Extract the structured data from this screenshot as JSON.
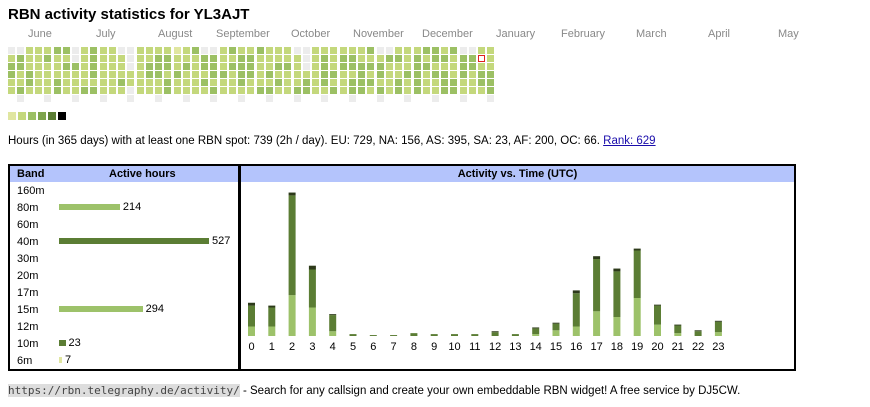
{
  "title": "RBN activity statistics for YL3AJT",
  "months": [
    "June",
    "July",
    "August",
    "September",
    "October",
    "November",
    "December",
    "January",
    "February",
    "March",
    "April",
    "May"
  ],
  "colors": {
    "levels": [
      "#e0e6a0",
      "#c4d87c",
      "#9cc064",
      "#7ea44c",
      "#5b7d34",
      "#000000"
    ],
    "empty": "#ececec",
    "today_border": "#e02020",
    "band_light": "#9dc26a",
    "band_dark": "#5b7d34",
    "band_pale": "#e0e6a0",
    "header_bg": "#b4c4fc"
  },
  "summary": {
    "text": "Hours (in 365 days) with at least one RBN spot: 739 (2h / day). EU: 729, NA: 156, AS: 395, SA: 23, AF: 200, OC: 66.",
    "rank_label": "Rank: 629"
  },
  "band_table": {
    "header_band": "Band",
    "header_hours": "Active hours",
    "rows": [
      {
        "band": "160m",
        "hours": null,
        "level": ""
      },
      {
        "band": "80m",
        "hours": 214,
        "level": "light"
      },
      {
        "band": "60m",
        "hours": null,
        "level": ""
      },
      {
        "band": "40m",
        "hours": 527,
        "level": "dark"
      },
      {
        "band": "30m",
        "hours": null,
        "level": ""
      },
      {
        "band": "20m",
        "hours": null,
        "level": ""
      },
      {
        "band": "17m",
        "hours": null,
        "level": ""
      },
      {
        "band": "15m",
        "hours": 294,
        "level": "light"
      },
      {
        "band": "12m",
        "hours": null,
        "level": ""
      },
      {
        "band": "10m",
        "hours": 23,
        "level": "dark"
      },
      {
        "band": "6m",
        "hours": 7,
        "level": "pale"
      }
    ]
  },
  "activity": {
    "title": "Activity vs. Time (UTC)",
    "hours": [
      "0",
      "1",
      "2",
      "3",
      "4",
      "5",
      "6",
      "7",
      "8",
      "9",
      "10",
      "11",
      "12",
      "13",
      "14",
      "15",
      "16",
      "17",
      "18",
      "19",
      "20",
      "21",
      "22",
      "23"
    ]
  },
  "chart_data": {
    "type": "bar",
    "title": "Activity vs. Time (UTC)",
    "categories": [
      "0",
      "1",
      "2",
      "3",
      "4",
      "5",
      "6",
      "7",
      "8",
      "9",
      "10",
      "11",
      "12",
      "13",
      "14",
      "15",
      "16",
      "17",
      "18",
      "19",
      "20",
      "21",
      "22",
      "23"
    ],
    "series": [
      {
        "values": [
          10,
          10,
          43,
          30,
          5,
          0,
          0,
          0,
          0,
          0,
          0,
          0,
          0,
          0,
          2,
          6,
          10,
          26,
          20,
          40,
          12,
          3,
          0,
          4
        ]
      },
      {
        "values": [
          22,
          20,
          105,
          40,
          17,
          2,
          1,
          1,
          3,
          2,
          2,
          2,
          4,
          2,
          6,
          7,
          35,
          55,
          48,
          50,
          20,
          8,
          5,
          11
        ]
      },
      {
        "values": [
          3,
          2,
          3,
          4,
          1,
          0,
          0,
          0,
          0,
          0,
          0,
          0,
          1,
          0,
          1,
          1,
          3,
          3,
          3,
          2,
          1,
          1,
          1,
          1
        ]
      }
    ]
  },
  "heatmap": {
    "rows": 7,
    "weeks": 53,
    "values": [
      [
        0,
        0,
        2,
        2,
        2,
        3,
        3,
        0,
        2,
        3,
        2,
        2,
        0,
        0,
        2,
        2,
        2,
        2,
        1,
        2,
        3,
        0,
        0,
        2,
        3,
        2,
        2,
        3,
        2,
        2,
        2,
        0,
        0,
        2,
        2,
        2,
        2,
        2,
        2,
        3,
        0,
        0,
        2,
        2,
        2,
        3,
        3,
        2,
        3,
        0,
        0,
        2,
        2
      ],
      [
        2,
        3,
        2,
        2,
        3,
        2,
        2,
        0,
        2,
        3,
        2,
        2,
        2,
        0,
        2,
        2,
        3,
        3,
        2,
        2,
        2,
        3,
        3,
        2,
        2,
        3,
        3,
        2,
        2,
        2,
        2,
        2,
        0,
        2,
        3,
        2,
        3,
        3,
        2,
        2,
        2,
        3,
        3,
        2,
        3,
        2,
        3,
        3,
        2,
        3,
        3,
        3,
        2
      ],
      [
        3,
        3,
        2,
        2,
        2,
        2,
        3,
        3,
        2,
        3,
        2,
        2,
        2,
        0,
        2,
        3,
        3,
        3,
        2,
        3,
        2,
        3,
        3,
        2,
        3,
        3,
        3,
        2,
        2,
        3,
        3,
        2,
        0,
        2,
        3,
        2,
        3,
        3,
        3,
        3,
        3,
        2,
        2,
        2,
        3,
        3,
        2,
        2,
        2,
        3,
        3,
        2,
        2
      ],
      [
        3,
        2,
        3,
        2,
        2,
        2,
        2,
        2,
        2,
        3,
        2,
        2,
        2,
        2,
        2,
        3,
        3,
        2,
        3,
        2,
        2,
        2,
        3,
        3,
        2,
        3,
        3,
        2,
        3,
        2,
        2,
        2,
        2,
        2,
        3,
        3,
        2,
        2,
        3,
        2,
        3,
        2,
        2,
        3,
        3,
        2,
        3,
        3,
        2,
        3,
        2,
        3,
        3
      ],
      [
        2,
        2,
        3,
        2,
        2,
        3,
        2,
        2,
        2,
        2,
        2,
        2,
        3,
        2,
        2,
        2,
        2,
        3,
        2,
        2,
        2,
        3,
        2,
        2,
        2,
        3,
        2,
        2,
        2,
        3,
        2,
        2,
        3,
        2,
        3,
        2,
        2,
        3,
        3,
        3,
        2,
        2,
        3,
        2,
        3,
        2,
        2,
        3,
        3,
        2,
        2,
        3,
        3
      ],
      [
        2,
        3,
        2,
        2,
        2,
        3,
        2,
        2,
        3,
        3,
        2,
        2,
        2,
        0,
        2,
        2,
        2,
        3,
        2,
        2,
        2,
        2,
        3,
        2,
        2,
        2,
        2,
        3,
        3,
        2,
        2,
        3,
        3,
        2,
        2,
        3,
        2,
        3,
        3,
        2,
        3,
        2,
        3,
        2,
        3,
        2,
        2,
        3,
        3,
        2,
        2,
        2,
        3
      ],
      [
        0,
        0,
        0,
        0,
        0,
        0,
        0,
        0,
        0,
        0,
        0,
        0,
        0,
        0,
        0,
        0,
        0,
        0,
        0,
        0,
        0,
        0,
        0,
        0,
        0,
        0,
        0,
        0,
        0,
        0,
        0,
        0,
        0,
        0,
        0,
        0,
        0,
        0,
        0,
        0,
        0,
        0,
        0,
        0,
        0,
        0,
        0,
        0,
        0,
        0,
        0,
        0,
        0
      ]
    ]
  },
  "footer": {
    "url": "https://rbn.telegraphy.de/activity/",
    "text": " - Search for any callsign and create your own embeddable RBN widget! A free service by DJ5CW."
  }
}
